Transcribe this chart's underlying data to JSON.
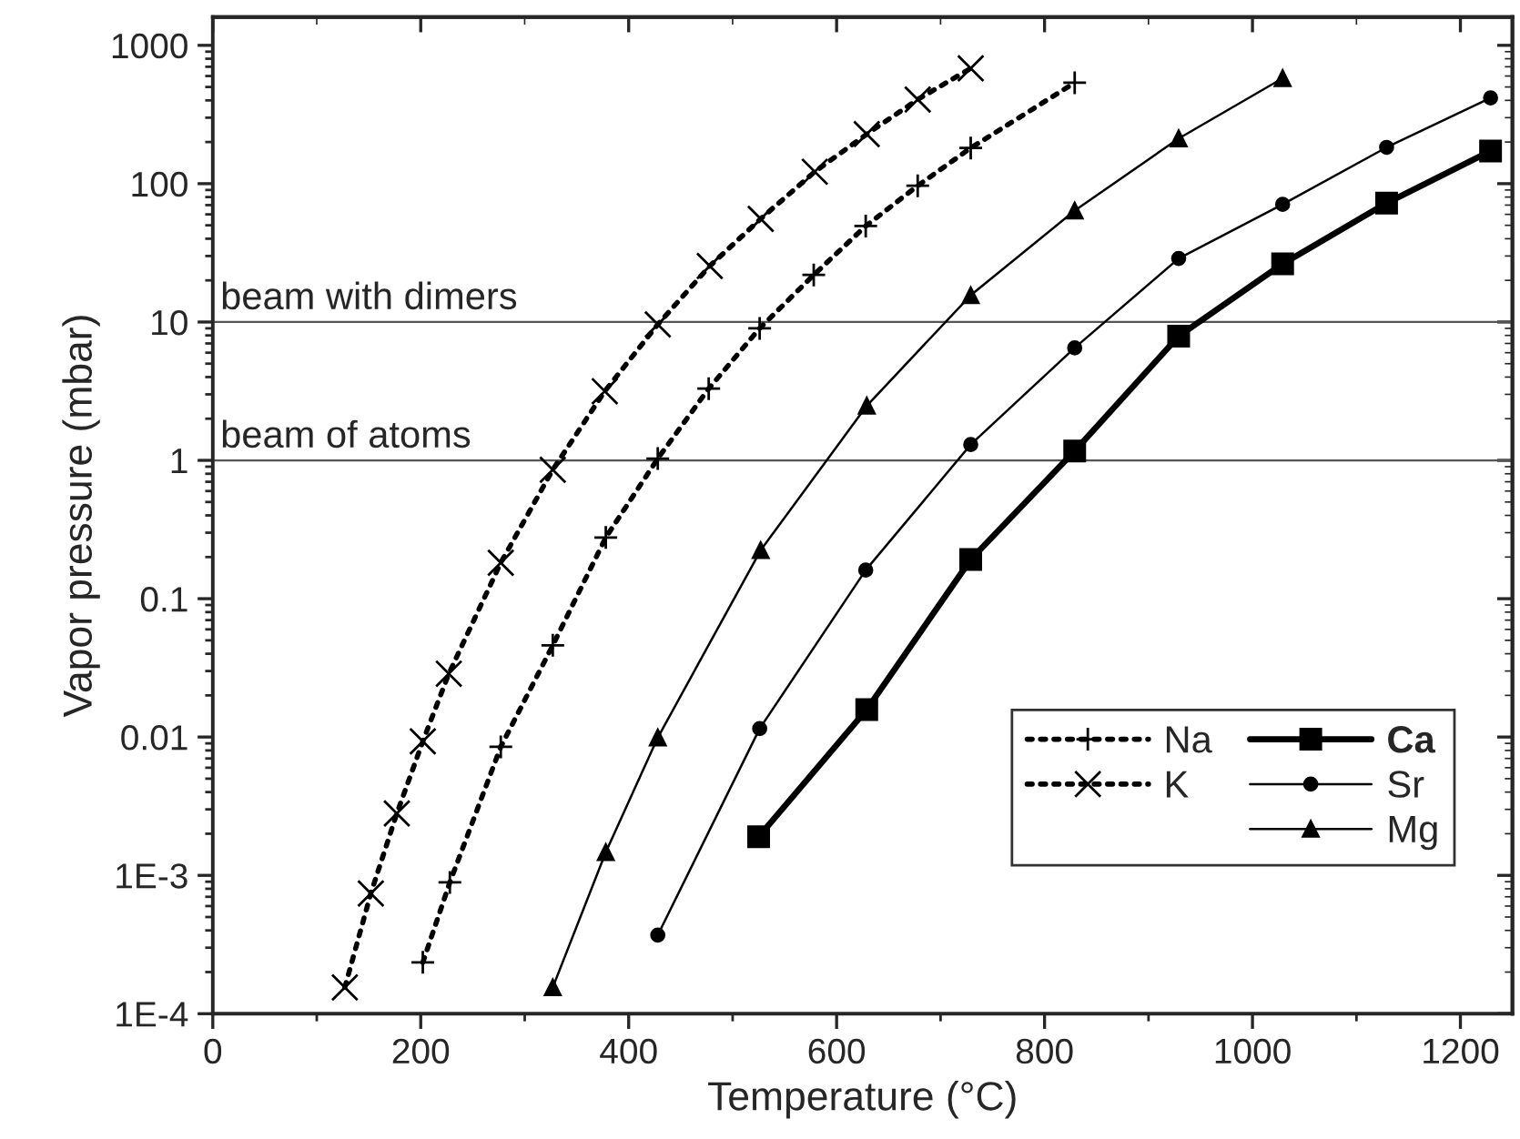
{
  "chart_data": {
    "type": "line",
    "xlabel": "Temperature (°C)",
    "ylabel": "Vapor pressure (mbar)",
    "xlim": [
      0,
      1250
    ],
    "xticks": [
      0,
      200,
      400,
      600,
      800,
      1000,
      1200
    ],
    "ylim": [
      0.0001,
      1600
    ],
    "log": "y",
    "yticks": [
      {
        "value": 0.0001,
        "label": "1E-4"
      },
      {
        "value": 0.001,
        "label": "1E-3"
      },
      0.01,
      0.1,
      1,
      10,
      100,
      1000
    ],
    "grid": false,
    "legend": "bottom right",
    "ref_lines": [
      {
        "axis": "y",
        "value": 10,
        "label": "beam with dimers",
        "color": "#555555"
      },
      {
        "axis": "y",
        "value": 1,
        "label": "beam of atoms",
        "color": "#555555"
      }
    ],
    "series": [
      {
        "name": "Na",
        "color": "#000000",
        "marker": "plus",
        "line_style": "dotted",
        "x": [
          202,
          228,
          277,
          327,
          378,
          428,
          477,
          526,
          578,
          628,
          678,
          729,
          829
        ],
        "values": [
          0.000235,
          0.00089,
          0.0085,
          0.046,
          0.277,
          1.03,
          3.3,
          9.0,
          21.9,
          49.4,
          96.6,
          181,
          537
        ]
      },
      {
        "name": "K",
        "color": "#000000",
        "marker": "cross",
        "line_style": "dotted",
        "x": [
          127,
          152,
          177,
          202,
          227,
          277,
          327,
          377,
          428,
          478,
          527,
          579,
          629,
          678,
          729
        ],
        "values": [
          0.000155,
          0.00074,
          0.0028,
          0.0093,
          0.0287,
          0.182,
          0.855,
          3.16,
          9.6,
          25.4,
          55.7,
          122,
          228,
          406,
          682
        ]
      },
      {
        "name": "Ca",
        "color": "#000000",
        "marker": "square",
        "line_style": "solid",
        "x": [
          525,
          629,
          729,
          829,
          929,
          1029,
          1129,
          1229
        ],
        "values": [
          0.0019,
          0.0158,
          0.192,
          1.17,
          7.9,
          26.3,
          72.4,
          172
        ]
      },
      {
        "name": "Sr",
        "color": "#000000",
        "marker": "circle",
        "line_style": "solid",
        "x": [
          428,
          526,
          628,
          729,
          829,
          929,
          1029,
          1129,
          1229
        ],
        "values": [
          0.00037,
          0.0115,
          0.161,
          1.3,
          6.5,
          28.8,
          70.8,
          183,
          417
        ]
      },
      {
        "name": "Mg",
        "color": "#000000",
        "marker": "triangle",
        "line_style": "solid",
        "x": [
          327,
          378,
          428,
          527,
          629,
          729,
          829,
          929,
          1029
        ],
        "values": [
          0.000155,
          0.00147,
          0.0099,
          0.224,
          2.48,
          15.6,
          63.8,
          212,
          578
        ]
      }
    ]
  }
}
